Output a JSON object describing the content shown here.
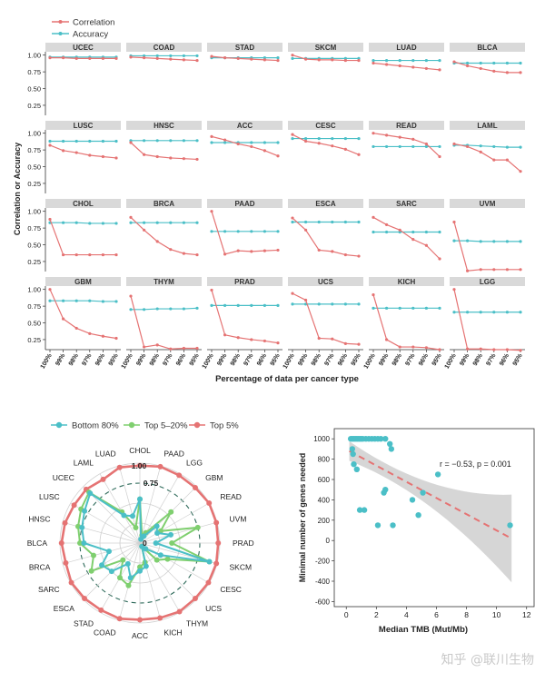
{
  "colors": {
    "correlation": "#e57373",
    "accuracy": "#4bbfc7",
    "bottom80": "#4bbfc7",
    "top5_20": "#7fcf6f",
    "top5": "#e57373",
    "strip": "#d9d9d9",
    "ci": "#c8c8c8"
  },
  "watermark": "知乎 @联川生物",
  "chart_data": [
    {
      "type": "line",
      "legend": [
        "Correlation",
        "Accuracy"
      ],
      "ylabel": "Correlation or Accuracy",
      "xlabel": "Percentage of data per cancer type",
      "x": [
        "100%",
        "99%",
        "98%",
        "97%",
        "96%",
        "95%"
      ],
      "yticks": [
        "1.00",
        "0.75",
        "0.50",
        "0.25"
      ],
      "ylim": [
        0.1,
        1.05
      ],
      "panels": [
        {
          "name": "UCEC",
          "correlation": [
            0.96,
            0.96,
            0.95,
            0.95,
            0.95,
            0.95
          ],
          "accuracy": [
            0.97,
            0.97,
            0.97,
            0.97,
            0.97,
            0.97
          ]
        },
        {
          "name": "COAD",
          "correlation": [
            0.97,
            0.96,
            0.95,
            0.94,
            0.93,
            0.92
          ],
          "accuracy": [
            0.99,
            0.99,
            0.99,
            0.99,
            0.99,
            0.99
          ]
        },
        {
          "name": "STAD",
          "correlation": [
            0.98,
            0.96,
            0.95,
            0.94,
            0.93,
            0.92
          ],
          "accuracy": [
            0.96,
            0.96,
            0.96,
            0.96,
            0.96,
            0.96
          ]
        },
        {
          "name": "SKCM",
          "correlation": [
            1.0,
            0.94,
            0.93,
            0.93,
            0.92,
            0.92
          ],
          "accuracy": [
            0.95,
            0.95,
            0.95,
            0.95,
            0.95,
            0.95
          ]
        },
        {
          "name": "LUAD",
          "correlation": [
            0.88,
            0.86,
            0.84,
            0.82,
            0.8,
            0.78
          ],
          "accuracy": [
            0.92,
            0.92,
            0.92,
            0.92,
            0.92,
            0.92
          ]
        },
        {
          "name": "BLCA",
          "correlation": [
            0.9,
            0.84,
            0.8,
            0.76,
            0.74,
            0.74
          ],
          "accuracy": [
            0.88,
            0.88,
            0.88,
            0.88,
            0.88,
            0.88
          ]
        },
        {
          "name": "LUSC",
          "correlation": [
            0.82,
            0.74,
            0.71,
            0.67,
            0.65,
            0.63
          ],
          "accuracy": [
            0.88,
            0.88,
            0.88,
            0.88,
            0.88,
            0.88
          ]
        },
        {
          "name": "HNSC",
          "correlation": [
            0.86,
            0.68,
            0.65,
            0.63,
            0.62,
            0.61
          ],
          "accuracy": [
            0.89,
            0.89,
            0.89,
            0.89,
            0.89,
            0.89
          ]
        },
        {
          "name": "ACC",
          "correlation": [
            0.95,
            0.9,
            0.84,
            0.8,
            0.74,
            0.66
          ],
          "accuracy": [
            0.86,
            0.86,
            0.86,
            0.86,
            0.86,
            0.86
          ]
        },
        {
          "name": "CESC",
          "correlation": [
            0.98,
            0.88,
            0.85,
            0.81,
            0.76,
            0.68
          ],
          "accuracy": [
            0.92,
            0.92,
            0.92,
            0.92,
            0.92,
            0.92
          ]
        },
        {
          "name": "READ",
          "correlation": [
            1.0,
            0.97,
            0.94,
            0.91,
            0.84,
            0.65
          ],
          "accuracy": [
            0.8,
            0.8,
            0.8,
            0.8,
            0.8,
            0.8
          ]
        },
        {
          "name": "LAML",
          "correlation": [
            0.84,
            0.8,
            0.72,
            0.6,
            0.6,
            0.43
          ],
          "accuracy": [
            0.82,
            0.82,
            0.81,
            0.8,
            0.79,
            0.79
          ]
        },
        {
          "name": "CHOL",
          "correlation": [
            0.88,
            0.35,
            0.35,
            0.35,
            0.35,
            0.35
          ],
          "accuracy": [
            0.83,
            0.83,
            0.83,
            0.82,
            0.82,
            0.82
          ]
        },
        {
          "name": "BRCA",
          "correlation": [
            0.91,
            0.72,
            0.55,
            0.43,
            0.37,
            0.35
          ],
          "accuracy": [
            0.83,
            0.83,
            0.83,
            0.83,
            0.83,
            0.83
          ]
        },
        {
          "name": "PAAD",
          "correlation": [
            1.0,
            0.36,
            0.41,
            0.4,
            0.41,
            0.42
          ],
          "accuracy": [
            0.7,
            0.7,
            0.7,
            0.7,
            0.7,
            0.7
          ]
        },
        {
          "name": "ESCA",
          "correlation": [
            0.9,
            0.72,
            0.42,
            0.4,
            0.35,
            0.33
          ],
          "accuracy": [
            0.84,
            0.84,
            0.84,
            0.84,
            0.84,
            0.84
          ]
        },
        {
          "name": "SARC",
          "correlation": [
            0.91,
            0.8,
            0.72,
            0.58,
            0.49,
            0.29
          ],
          "accuracy": [
            0.69,
            0.69,
            0.69,
            0.69,
            0.69,
            0.69
          ]
        },
        {
          "name": "UVM",
          "correlation": [
            0.84,
            0.11,
            0.13,
            0.13,
            0.13,
            0.13
          ],
          "accuracy": [
            0.56,
            0.56,
            0.55,
            0.55,
            0.55,
            0.55
          ]
        },
        {
          "name": "GBM",
          "correlation": [
            1.0,
            0.56,
            0.42,
            0.34,
            0.3,
            0.27
          ],
          "accuracy": [
            0.83,
            0.83,
            0.83,
            0.83,
            0.82,
            0.82
          ]
        },
        {
          "name": "THYM",
          "correlation": [
            0.9,
            0.14,
            0.17,
            0.11,
            0.12,
            0.12
          ],
          "accuracy": [
            0.7,
            0.7,
            0.71,
            0.71,
            0.71,
            0.72
          ]
        },
        {
          "name": "PRAD",
          "correlation": [
            0.99,
            0.32,
            0.28,
            0.25,
            0.23,
            0.2
          ],
          "accuracy": [
            0.76,
            0.76,
            0.76,
            0.76,
            0.76,
            0.76
          ]
        },
        {
          "name": "UCS",
          "correlation": [
            0.94,
            0.84,
            0.27,
            0.26,
            0.19,
            0.18
          ],
          "accuracy": [
            0.78,
            0.78,
            0.78,
            0.78,
            0.78,
            0.78
          ]
        },
        {
          "name": "KICH",
          "correlation": [
            0.92,
            0.25,
            0.14,
            0.14,
            0.13,
            0.1
          ],
          "accuracy": [
            0.72,
            0.72,
            0.72,
            0.72,
            0.72,
            0.72
          ]
        },
        {
          "name": "LGG",
          "correlation": [
            1.0,
            0.11,
            0.11,
            0.1,
            0.1,
            0.09
          ],
          "accuracy": [
            0.66,
            0.66,
            0.66,
            0.66,
            0.66,
            0.66
          ]
        }
      ]
    },
    {
      "type": "radar",
      "legend": [
        "Bottom 80%",
        "Top 5–20%",
        "Top 5%"
      ],
      "categories": [
        "CHOL",
        "PAAD",
        "LGG",
        "GBM",
        "READ",
        "UVM",
        "PRAD",
        "SKCM",
        "CESC",
        "UCS",
        "THYM",
        "KICH",
        "ACC",
        "COAD",
        "STAD",
        "ESCA",
        "SARC",
        "BRCA",
        "BLCA",
        "HNSC",
        "LUSC",
        "UCEC",
        "LAML",
        "LUAD"
      ],
      "rticks": [
        "0",
        "0.75",
        "1.00"
      ],
      "rlim": [
        0,
        1
      ],
      "series": [
        {
          "name": "Top 5%",
          "values": [
            0.97,
            0.99,
            0.98,
            0.98,
            1.0,
            0.99,
            0.98,
            0.99,
            0.99,
            0.98,
            0.99,
            0.97,
            0.96,
            0.98,
            0.97,
            0.98,
            0.99,
            0.96,
            0.98,
            0.97,
            0.95,
            0.95,
            0.92,
            0.98
          ]
        },
        {
          "name": "Top 5–20%",
          "values": [
            0.55,
            0.1,
            0.15,
            0.55,
            0.3,
            0.75,
            0.4,
            0.9,
            0.4,
            0.3,
            0.05,
            0.25,
            0.3,
            0.55,
            0.5,
            0.3,
            0.7,
            0.6,
            0.75,
            0.8,
            0.85,
            0.9,
            0.45,
            0.2
          ]
        },
        {
          "name": "Bottom 80%",
          "values": [
            0.55,
            0.05,
            0.1,
            0.3,
            0.25,
            0.4,
            0.2,
            0.9,
            0.3,
            0.1,
            0.05,
            0.3,
            0.35,
            0.45,
            0.3,
            0.5,
            0.55,
            0.4,
            0.7,
            0.75,
            0.8,
            0.88,
            0.4,
            0.35
          ]
        }
      ]
    },
    {
      "type": "scatter",
      "annotation": "r = −0.53, p = 0.001",
      "xlabel": "Median TMB (Mut/Mb)",
      "ylabel": "Minimal number of genes needed",
      "xlim": [
        -0.8,
        12.5
      ],
      "ylim": [
        -650,
        1100
      ],
      "xticks": [
        0,
        2,
        4,
        6,
        8,
        10,
        12
      ],
      "yticks": [
        -600,
        -400,
        -200,
        0,
        200,
        400,
        600,
        800,
        1000
      ],
      "x": [
        0.3,
        0.4,
        0.5,
        0.6,
        0.7,
        0.8,
        0.9,
        1.0,
        1.1,
        1.3,
        1.5,
        1.7,
        1.9,
        2.1,
        2.3,
        2.6,
        0.4,
        0.5,
        0.7,
        0.9,
        1.2,
        2.1,
        2.6,
        2.9,
        3.0,
        3.1,
        2.5,
        4.4,
        4.8,
        5.1,
        6.1,
        10.9,
        0.45
      ],
      "y": [
        1000,
        1000,
        1000,
        1000,
        1000,
        1000,
        1000,
        1000,
        1000,
        1000,
        1000,
        1000,
        1000,
        1000,
        1000,
        1000,
        900,
        750,
        700,
        300,
        300,
        150,
        500,
        950,
        900,
        150,
        470,
        400,
        250,
        470,
        650,
        150,
        850
      ],
      "fit": {
        "x0": 0.2,
        "y0": 880,
        "x1": 11,
        "y1": 20
      }
    }
  ]
}
